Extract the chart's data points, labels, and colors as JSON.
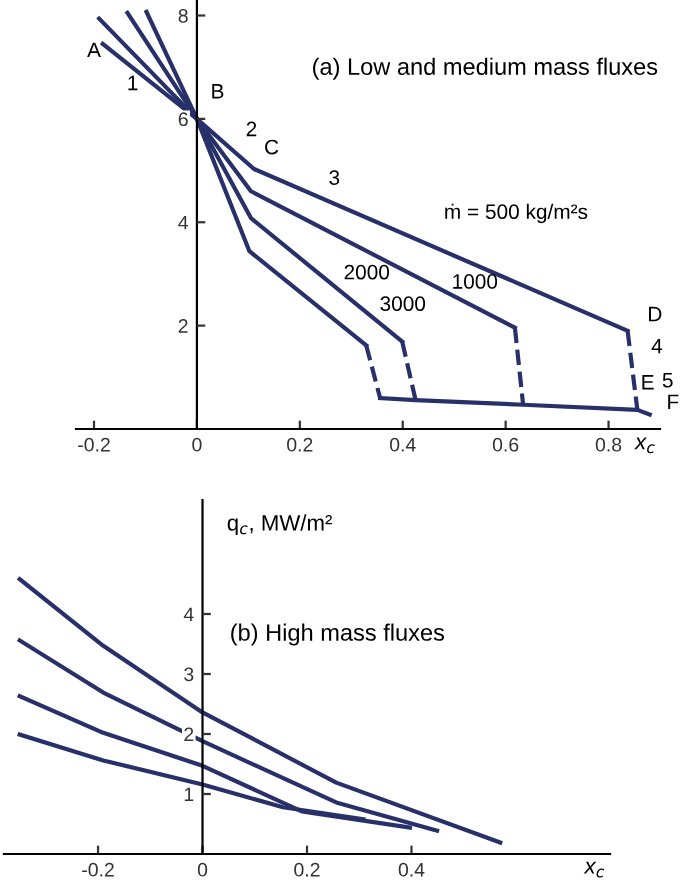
{
  "chart_data": [
    {
      "type": "line",
      "title": "(a) Low and medium mass fluxes",
      "xlabel": "x$_{c}$",
      "xlim": [
        -0.235,
        0.9
      ],
      "ylim": [
        0,
        8.3
      ],
      "xticks": [
        -0.2,
        0,
        0.2,
        0.4,
        0.6,
        0.8
      ],
      "yticks": [
        2,
        4,
        6,
        8
      ],
      "grid": false,
      "legend": false,
      "series": [
        {
          "color": "#28306a",
          "x": [
            -0.183,
            0,
            0.111,
            0.837
          ],
          "values": [
            7.45,
            6.0,
            5.03,
            1.9
          ]
        },
        {
          "color": "#28306a",
          "x": [
            -0.19,
            0,
            0.105,
            0.618
          ],
          "values": [
            7.94,
            6.0,
            4.6,
            1.96
          ]
        },
        {
          "color": "#28306a",
          "x": [
            -0.135,
            0,
            0.105,
            0.399
          ],
          "values": [
            8.05,
            6.0,
            4.08,
            1.69
          ]
        },
        {
          "color": "#28306a",
          "x": [
            -0.098,
            0,
            0.102,
            0.329
          ],
          "values": [
            8.07,
            6.0,
            3.44,
            1.62
          ]
        },
        {
          "color": "#28306a",
          "line_style": "dashed",
          "x": [
            0.837,
            0.856
          ],
          "values": [
            1.9,
            0.37
          ]
        },
        {
          "color": "#28306a",
          "line_style": "dashed",
          "x": [
            0.618,
            0.634
          ],
          "values": [
            1.96,
            0.47
          ]
        },
        {
          "color": "#28306a",
          "line_style": "dashed",
          "x": [
            0.399,
            0.425
          ],
          "values": [
            1.69,
            0.56
          ]
        },
        {
          "color": "#28306a",
          "line_style": "dashed",
          "x": [
            0.329,
            0.356
          ],
          "values": [
            1.62,
            0.6
          ]
        },
        {
          "color": "#28306a",
          "x": [
            0.356,
            0.425,
            0.634,
            0.856,
            0.88
          ],
          "values": [
            0.6,
            0.56,
            0.47,
            0.37,
            0.28
          ]
        }
      ],
      "annotations": [
        "A",
        "1",
        "B",
        "2",
        "C",
        "3",
        "ṁ = 500 kg/m²s",
        "1000",
        "2000",
        "3000",
        "D",
        "4",
        "E",
        "5",
        "F"
      ]
    },
    {
      "type": "line",
      "title": "(b) High mass fluxes",
      "xlabel": "x$_{c}$",
      "ylabel": "q$_{c}$, MW/m²",
      "xlim": [
        -0.38,
        0.78
      ],
      "ylim": [
        0,
        5.9
      ],
      "xticks": [
        -0.2,
        0,
        0.2,
        0.4
      ],
      "yticks": [
        1,
        2,
        3,
        4
      ],
      "grid": false,
      "legend": false,
      "series": [
        {
          "color": "#28306a",
          "x": [
            -0.35,
            -0.19,
            0,
            0.256,
            0.57
          ],
          "values": [
            4.58,
            3.47,
            2.36,
            1.19,
            0.19
          ]
        },
        {
          "color": "#28306a",
          "x": [
            -0.35,
            -0.19,
            0,
            0.256,
            0.449
          ],
          "values": [
            3.56,
            2.69,
            1.88,
            0.86,
            0.39
          ]
        },
        {
          "color": "#28306a",
          "x": [
            -0.35,
            -0.19,
            0,
            0.19,
            0.397
          ],
          "values": [
            2.63,
            2.02,
            1.47,
            0.71,
            0.44
          ]
        },
        {
          "color": "#28306a",
          "x": [
            -0.35,
            -0.19,
            0,
            0.154,
            0.308
          ],
          "values": [
            1.99,
            1.56,
            1.16,
            0.78,
            0.58
          ]
        }
      ]
    }
  ]
}
